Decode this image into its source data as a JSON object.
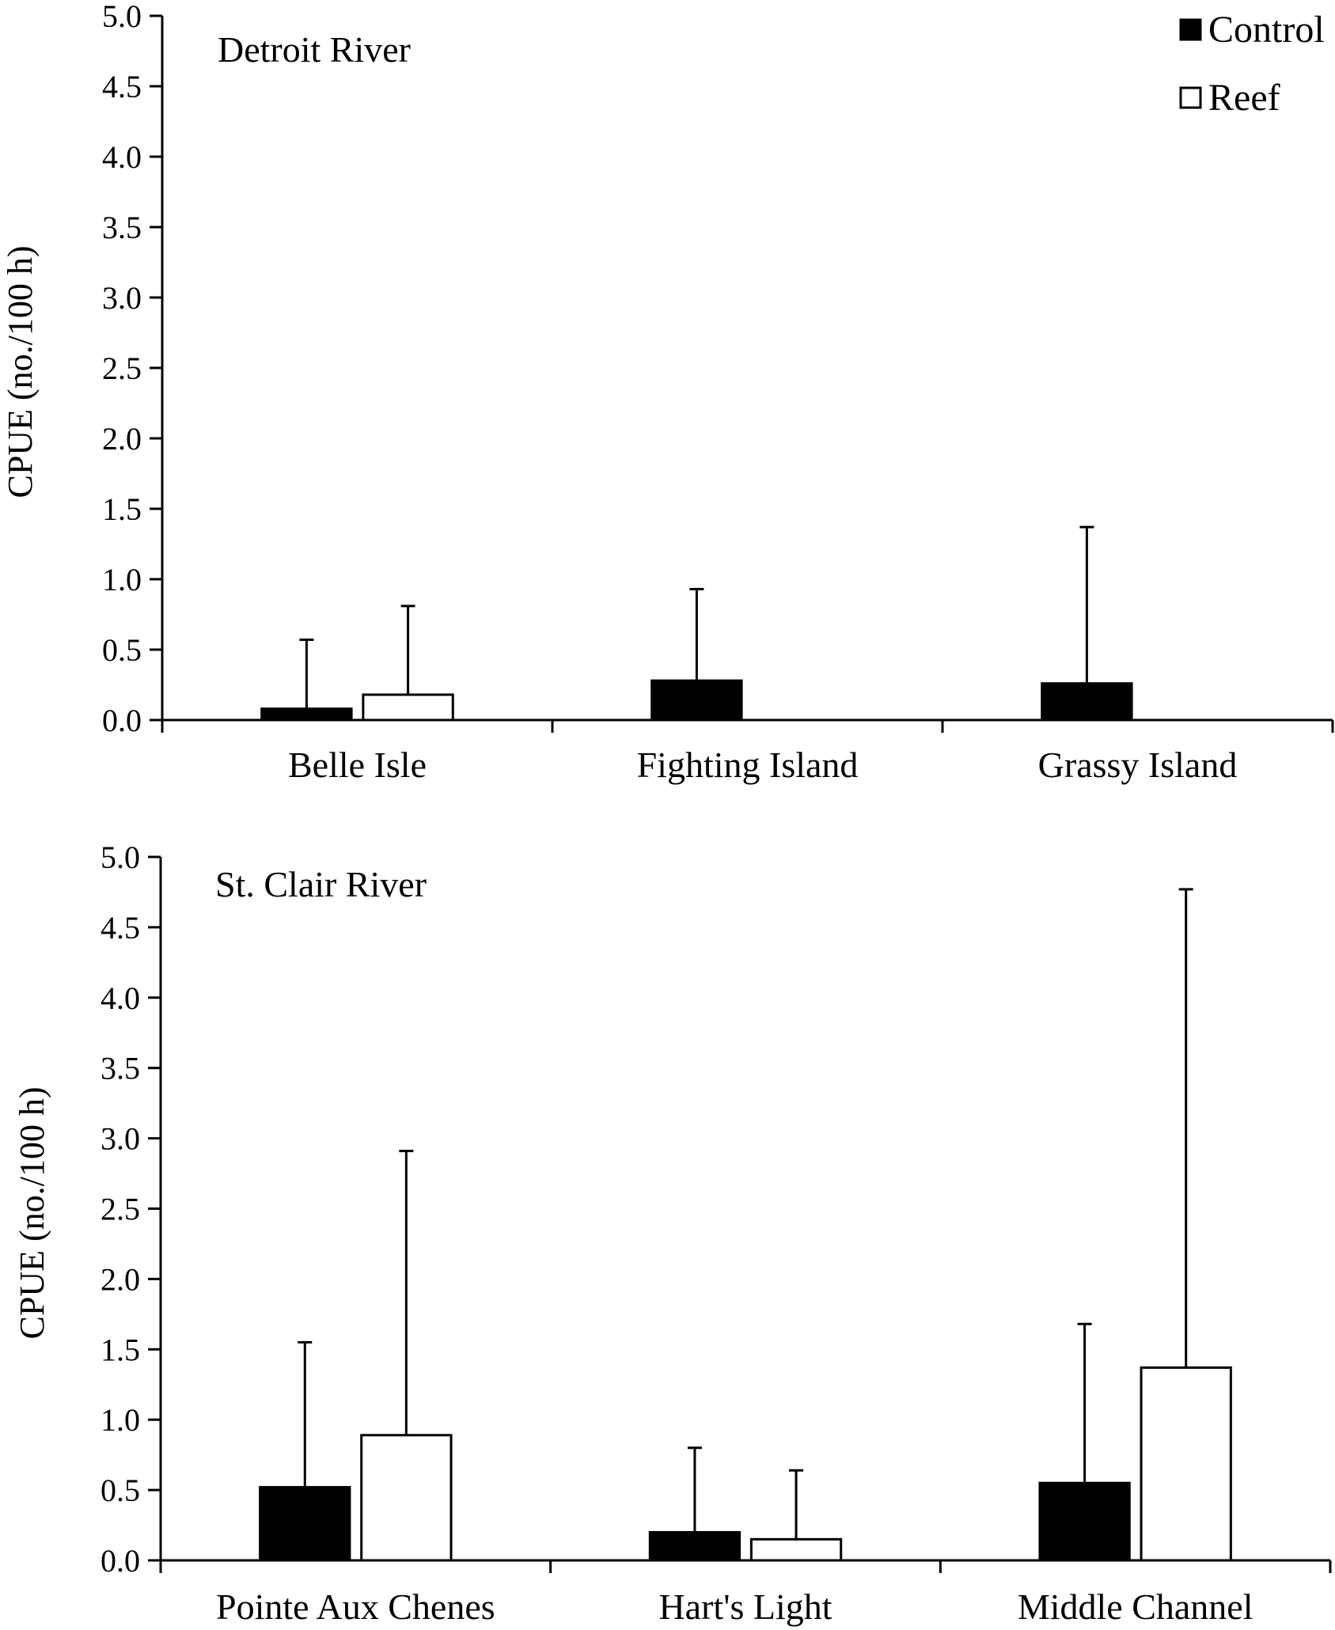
{
  "legend": {
    "items": [
      {
        "label": "Control",
        "color": "#000000"
      },
      {
        "label": "Reef",
        "color": "#ffffff"
      }
    ],
    "placement": "top-right"
  },
  "chart_data": [
    {
      "type": "bar",
      "title": "Detroit River",
      "ylabel": "CPUE (no./100 h)",
      "ylim": [
        0,
        5.0
      ],
      "yticks": [
        "0.0",
        "0.5",
        "1.0",
        "1.5",
        "2.0",
        "2.5",
        "3.0",
        "3.5",
        "4.0",
        "4.5",
        "5.0"
      ],
      "categories": [
        "Belle Isle",
        "Fighting Island",
        "Grassy Island"
      ],
      "series": [
        {
          "name": "Control",
          "color": "#000000",
          "values": [
            0.08,
            0.28,
            0.26
          ],
          "error_upper": [
            0.57,
            0.93,
            1.37
          ]
        },
        {
          "name": "Reef",
          "color": "#ffffff",
          "values": [
            0.18,
            0,
            0
          ],
          "error_upper": [
            0.81,
            0,
            0
          ]
        }
      ],
      "grid": false
    },
    {
      "type": "bar",
      "title": "St. Clair River",
      "ylabel": "CPUE (no./100 h)",
      "ylim": [
        0,
        5.0
      ],
      "yticks": [
        "0.0",
        "0.5",
        "1.0",
        "1.5",
        "2.0",
        "2.5",
        "3.0",
        "3.5",
        "4.0",
        "4.5",
        "5.0"
      ],
      "categories": [
        "Pointe Aux Chenes",
        "Hart's Light",
        "Middle Channel"
      ],
      "series": [
        {
          "name": "Control",
          "color": "#000000",
          "values": [
            0.52,
            0.2,
            0.55
          ],
          "error_upper": [
            1.55,
            0.8,
            1.68
          ]
        },
        {
          "name": "Reef",
          "color": "#ffffff",
          "values": [
            0.89,
            0.15,
            1.37
          ],
          "error_upper": [
            2.91,
            0.64,
            4.77
          ]
        }
      ],
      "grid": false
    }
  ]
}
